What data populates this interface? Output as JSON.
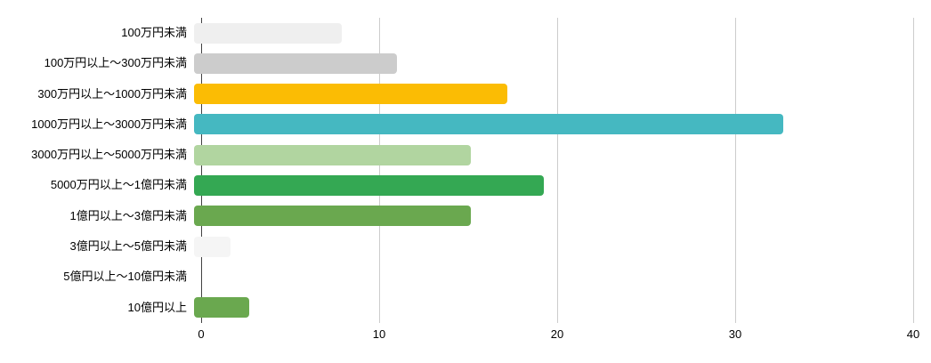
{
  "chart_data": {
    "type": "bar",
    "orientation": "horizontal",
    "title": "",
    "xlabel": "",
    "ylabel": "",
    "categories": [
      "100万円未満",
      "100万円以上～300万円未満",
      "300万円以上～1000万円未満",
      "1000万円以上～3000万円未満",
      "3000万円以上～5000万円未満",
      "5000万円以上～1億円未満",
      "1億円以上～3億円未満",
      "3億円以上～5億円未満",
      "5億円以上～10億円未満",
      "10億円以上"
    ],
    "values": [
      8,
      11,
      17,
      32,
      15,
      19,
      15,
      2,
      0,
      3
    ],
    "bar_colors": [
      "#efefef",
      "#cccccc",
      "#fbbc04",
      "#45b8c1",
      "#b1d5a0",
      "#34a853",
      "#6aa84f",
      "#f5f5f5",
      "#ffffff",
      "#6aa84f"
    ],
    "xlim": [
      0,
      40
    ],
    "x_ticks": [
      0,
      10,
      20,
      30,
      40
    ],
    "x_tick_labels": [
      "0",
      "10",
      "20",
      "30",
      "40"
    ],
    "grid": "vertical-gridlines-at-ticks",
    "legend": "none",
    "colors": {
      "background": "#ffffff",
      "gridline": "#cccccc",
      "axis_line": "#424242",
      "label_text": "#000000"
    }
  }
}
